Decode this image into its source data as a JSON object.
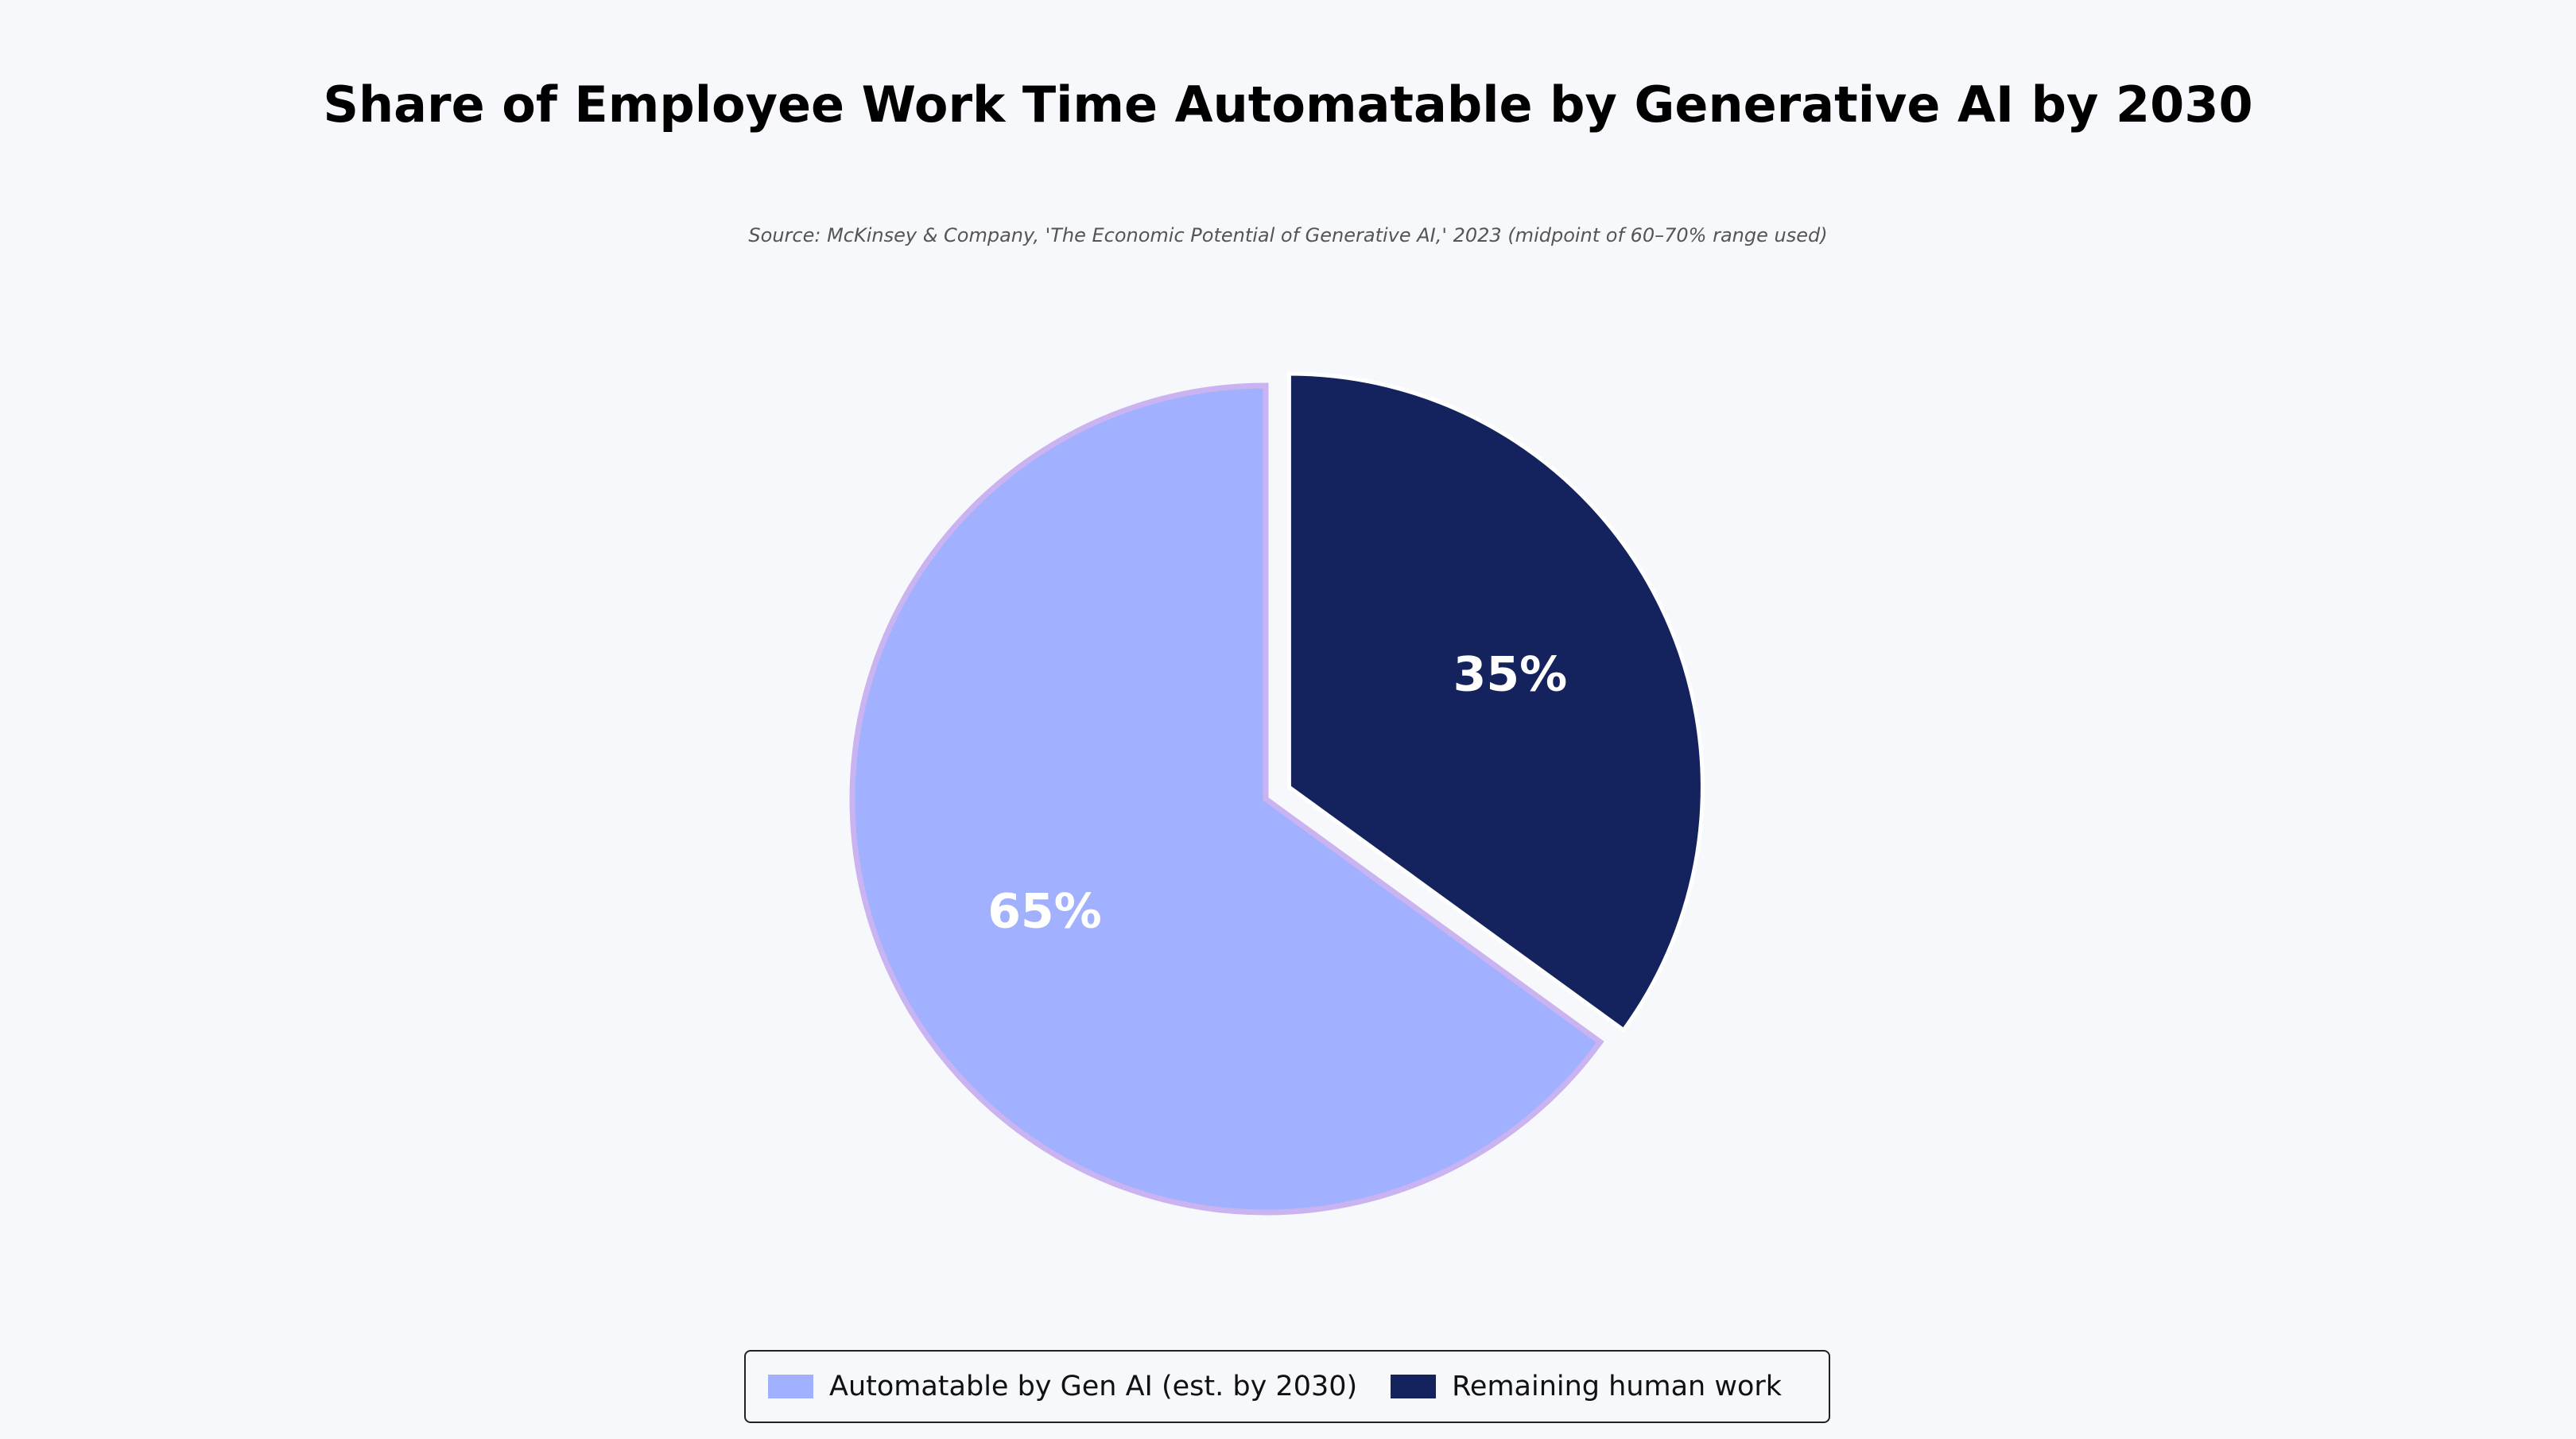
{
  "chart_data": {
    "type": "pie",
    "title": "Share of Employee Work Time Automatable by Generative AI by 2030",
    "subtitle": "Source: McKinsey & Company, 'The Economic Potential of Generative AI,' 2023 (midpoint of 60–70% range used)",
    "slices": [
      {
        "label": "Automatable by Gen AI (est. by 2030)",
        "value": 65,
        "display": "65%",
        "color": "#a2b1ff",
        "edge_color": "#c9b3f0",
        "exploded": false
      },
      {
        "label": "Remaining human work",
        "value": 35,
        "display": "35%",
        "color": "#14235e",
        "edge_color": "#ffffff",
        "exploded": true
      }
    ],
    "legend_position": "bottom-center"
  }
}
